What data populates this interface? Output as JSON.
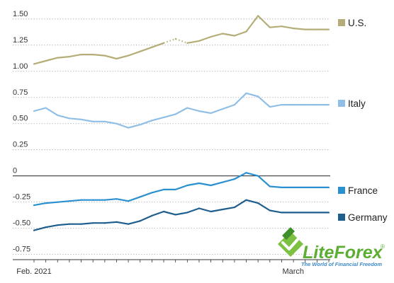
{
  "chart_data": {
    "type": "line",
    "y_ticks": [
      "1.50",
      "1.25",
      "1.00",
      "0.75",
      "0.50",
      "0.25",
      "0",
      "-0.25",
      "-0.50",
      "-0.75"
    ],
    "y_tick_values": [
      1.5,
      1.25,
      1.0,
      0.75,
      0.5,
      0.25,
      0,
      -0.25,
      -0.5,
      -0.75
    ],
    "ylim": [
      -0.8,
      1.58
    ],
    "x_labels": [
      "Feb. 2021",
      "March"
    ],
    "x_label_positions": [
      0,
      23
    ],
    "x_count": 26,
    "grid": "dotted-horizontal",
    "zero_line": true,
    "series": [
      {
        "name": "U.S.",
        "color": "#b5ad77",
        "dotted_range": [
          12,
          13
        ],
        "values": [
          1.07,
          1.1,
          1.13,
          1.14,
          1.16,
          1.16,
          1.15,
          1.12,
          1.15,
          1.19,
          1.23,
          1.27,
          1.31,
          1.27,
          1.29,
          1.33,
          1.36,
          1.34,
          1.38,
          1.53,
          1.42,
          1.43,
          1.41,
          1.4,
          1.4,
          1.4
        ]
      },
      {
        "name": "Italy",
        "color": "#8fbfe6",
        "values": [
          0.62,
          0.65,
          0.58,
          0.55,
          0.54,
          0.52,
          0.52,
          0.5,
          0.46,
          0.49,
          0.53,
          0.56,
          0.59,
          0.65,
          0.62,
          0.6,
          0.64,
          0.68,
          0.79,
          0.76,
          0.66,
          0.68,
          0.68,
          0.68,
          0.68,
          0.68
        ]
      },
      {
        "name": "France",
        "color": "#2a90d0",
        "values": [
          -0.28,
          -0.26,
          -0.25,
          -0.24,
          -0.23,
          -0.23,
          -0.23,
          -0.22,
          -0.24,
          -0.2,
          -0.16,
          -0.13,
          -0.13,
          -0.09,
          -0.07,
          -0.09,
          -0.06,
          -0.03,
          0.03,
          0.0,
          -0.1,
          -0.11,
          -0.11,
          -0.11,
          -0.11,
          -0.11
        ]
      },
      {
        "name": "Germany",
        "color": "#1e5e8e",
        "values": [
          -0.52,
          -0.49,
          -0.47,
          -0.46,
          -0.46,
          -0.45,
          -0.45,
          -0.44,
          -0.46,
          -0.43,
          -0.38,
          -0.34,
          -0.37,
          -0.35,
          -0.31,
          -0.34,
          -0.32,
          -0.3,
          -0.23,
          -0.26,
          -0.33,
          -0.35,
          -0.35,
          -0.35,
          -0.35,
          -0.35
        ]
      }
    ]
  },
  "logo": {
    "brand": "LiteForex",
    "tagline": "The World of Financial Freedom",
    "mark": "®"
  }
}
